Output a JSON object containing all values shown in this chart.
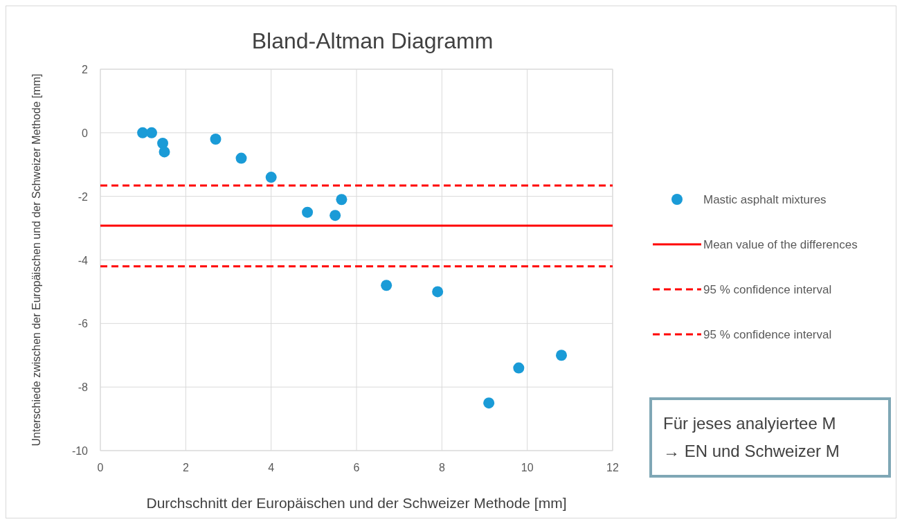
{
  "chart_data": {
    "type": "scatter",
    "title": "Bland-Altman Diagramm",
    "xlabel": "Durchschnitt der Europäischen und der Schweizer Methode [mm]",
    "ylabel": "Unterschiede zwischen der Europäischen und der Schweizer Methode [mm]",
    "series": [
      {
        "name": "Mastic asphalt mixtures",
        "color": "#1a9bd7",
        "x": [
          0.99,
          1.2,
          1.46,
          1.5,
          2.7,
          3.3,
          4.0,
          4.85,
          5.5,
          5.65,
          6.7,
          7.9,
          9.1,
          9.8,
          10.8
        ],
        "values": [
          0,
          0,
          -0.33,
          -0.6,
          -0.2,
          -0.8,
          -1.4,
          -2.5,
          -2.6,
          -2.1,
          -4.8,
          -5.0,
          -8.5,
          -7.4,
          -7.0
        ]
      }
    ],
    "ref_lines": [
      {
        "axis": "y",
        "value": -2.92,
        "label": "Mean value of the differences",
        "color": "#ff0000",
        "line_style": "solid"
      },
      {
        "axis": "y",
        "value": -1.66,
        "label": "95 % confidence interval",
        "color": "#ff0000",
        "line_style": "dashed"
      },
      {
        "axis": "y",
        "value": -4.2,
        "label": "95 % confidence interval",
        "color": "#ff0000",
        "line_style": "dashed"
      }
    ],
    "annotations": [
      "Für jeses analyiertee M",
      "→ EN und Schweizer M"
    ],
    "xlim": [
      0,
      12
    ],
    "xticks": [
      0,
      2,
      4,
      6,
      8,
      10,
      12
    ],
    "ylim": [
      -10,
      2
    ],
    "yticks": [
      -10,
      -8,
      -6,
      -4,
      -2,
      0,
      2
    ],
    "grid": true,
    "legend": "right",
    "marker": "circle"
  }
}
